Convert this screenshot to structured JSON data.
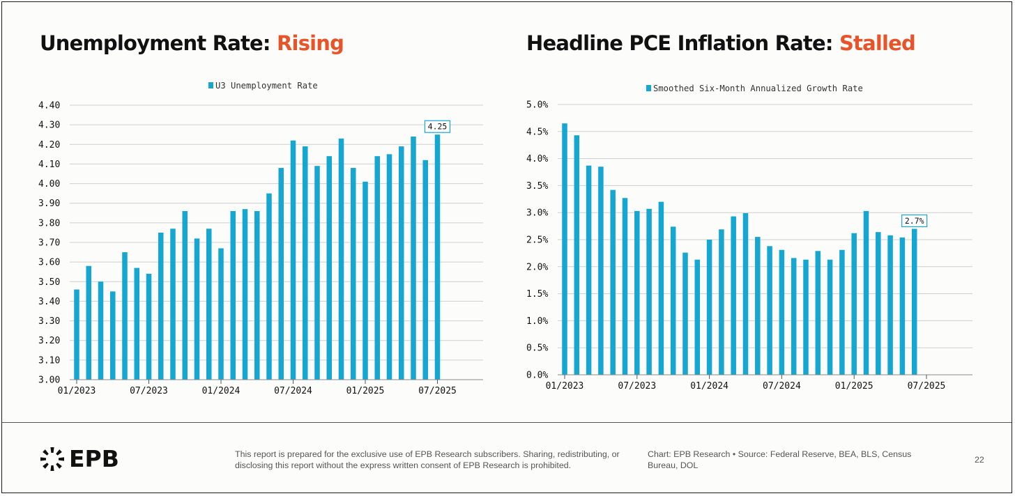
{
  "left_chart": {
    "title_prefix": "Unemployment Rate: ",
    "title_accent": "Rising"
  },
  "right_chart": {
    "title_prefix": "Headline PCE Inflation Rate: ",
    "title_accent": "Stalled"
  },
  "footer": {
    "logo_text": "EPB",
    "disclaimer": "This report is prepared for the exclusive use of EPB Research subscribers. Sharing, redistributing, or disclosing this report without the express written consent of EPB Research is prohibited.",
    "credit": "Chart: EPB Research  •  Source: Federal Reserve, BEA, BLS, Census Bureau, DOL",
    "page_number": "22"
  },
  "colors": {
    "bar": "#16a6d2",
    "accent": "#e8542a",
    "grid": "#cfcfcf",
    "text": "#111111"
  },
  "chart_data": [
    {
      "type": "bar",
      "title": "Unemployment Rate: Rising",
      "legend_position": "top-center",
      "grid": true,
      "series": [
        {
          "name": "U3 Unemployment Rate",
          "x": [
            "01/2023",
            "02/2023",
            "03/2023",
            "04/2023",
            "05/2023",
            "06/2023",
            "07/2023",
            "08/2023",
            "09/2023",
            "10/2023",
            "11/2023",
            "12/2023",
            "01/2024",
            "02/2024",
            "03/2024",
            "04/2024",
            "05/2024",
            "06/2024",
            "07/2024",
            "08/2024",
            "09/2024",
            "10/2024",
            "11/2024",
            "12/2024",
            "01/2025",
            "02/2025",
            "03/2025",
            "04/2025",
            "05/2025",
            "06/2025",
            "07/2025"
          ],
          "values": [
            3.46,
            3.58,
            3.5,
            3.45,
            3.65,
            3.57,
            3.54,
            3.75,
            3.77,
            3.86,
            3.72,
            3.77,
            3.67,
            3.86,
            3.87,
            3.86,
            3.95,
            4.08,
            4.22,
            4.19,
            4.09,
            4.14,
            4.23,
            4.08,
            4.01,
            4.14,
            4.15,
            4.19,
            4.24,
            4.12,
            4.25
          ]
        }
      ],
      "x_ticks": [
        "01/2023",
        "07/2023",
        "01/2024",
        "07/2024",
        "01/2025",
        "07/2025"
      ],
      "y_ticks": [
        "3.00",
        "3.10",
        "3.20",
        "3.30",
        "3.40",
        "3.50",
        "3.60",
        "3.70",
        "3.80",
        "3.90",
        "4.00",
        "4.10",
        "4.20",
        "4.30",
        "4.40"
      ],
      "ylim": [
        3.0,
        4.4
      ],
      "annotation": {
        "label": "4.25",
        "x": "07/2025",
        "value": 4.25
      }
    },
    {
      "type": "bar",
      "title": "Headline PCE Inflation Rate: Stalled",
      "legend_position": "top-center",
      "grid": true,
      "series": [
        {
          "name": "Smoothed Six-Month Annualized Growth Rate",
          "x": [
            "01/2023",
            "02/2023",
            "03/2023",
            "04/2023",
            "05/2023",
            "06/2023",
            "07/2023",
            "08/2023",
            "09/2023",
            "10/2023",
            "11/2023",
            "12/2023",
            "01/2024",
            "02/2024",
            "03/2024",
            "04/2024",
            "05/2024",
            "06/2024",
            "07/2024",
            "08/2024",
            "09/2024",
            "10/2024",
            "11/2024",
            "12/2024",
            "01/2025",
            "02/2025",
            "03/2025",
            "04/2025",
            "05/2025",
            "06/2025"
          ],
          "values": [
            4.65,
            4.43,
            3.87,
            3.85,
            3.42,
            3.27,
            3.03,
            3.07,
            3.2,
            2.74,
            2.26,
            2.13,
            2.5,
            2.69,
            2.93,
            2.99,
            2.55,
            2.38,
            2.31,
            2.16,
            2.13,
            2.29,
            2.13,
            2.31,
            2.62,
            3.03,
            2.64,
            2.58,
            2.54,
            2.7
          ]
        }
      ],
      "x_ticks": [
        "01/2023",
        "07/2023",
        "01/2024",
        "07/2024",
        "01/2025",
        "07/2025"
      ],
      "y_ticks": [
        "0.0%",
        "0.5%",
        "1.0%",
        "1.5%",
        "2.0%",
        "2.5%",
        "3.0%",
        "3.5%",
        "4.0%",
        "4.5%",
        "5.0%"
      ],
      "ylim": [
        0.0,
        5.0
      ],
      "annotation": {
        "label": "2.7%",
        "x": "06/2025",
        "value": 2.7
      }
    }
  ]
}
